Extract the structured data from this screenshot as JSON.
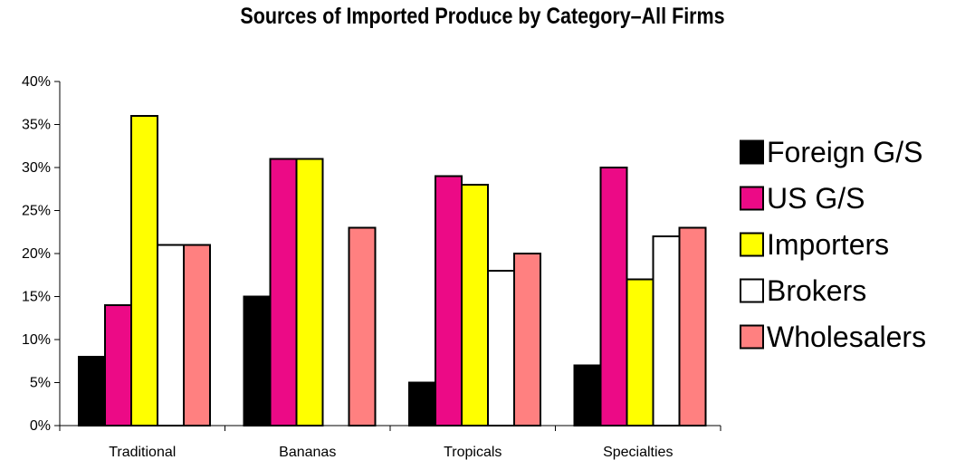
{
  "chart_data": {
    "type": "bar",
    "title": "Sources of Imported Produce by Category–All Firms",
    "xlabel": "",
    "ylabel": "",
    "categories": [
      "Traditional",
      "Bananas",
      "Tropicals",
      "Specialties"
    ],
    "ylim": [
      0,
      40
    ],
    "y_ticks": [
      "0%",
      "5%",
      "10%",
      "15%",
      "20%",
      "25%",
      "30%",
      "35%",
      "40%"
    ],
    "grid": false,
    "legend_position": "right",
    "series": [
      {
        "name": "Foreign G/S",
        "color": "#000000",
        "values": [
          8,
          15,
          5,
          7
        ]
      },
      {
        "name": "US G/S",
        "color": "#ec0a86",
        "values": [
          14,
          31,
          29,
          30
        ]
      },
      {
        "name": "Importers",
        "color": "#ffff00",
        "values": [
          36,
          31,
          28,
          17
        ]
      },
      {
        "name": "Brokers",
        "color": "#ffffff",
        "values": [
          21,
          0,
          18,
          22
        ]
      },
      {
        "name": "Wholesalers",
        "color": "#ff8080",
        "values": [
          21,
          23,
          20,
          23
        ]
      }
    ]
  }
}
